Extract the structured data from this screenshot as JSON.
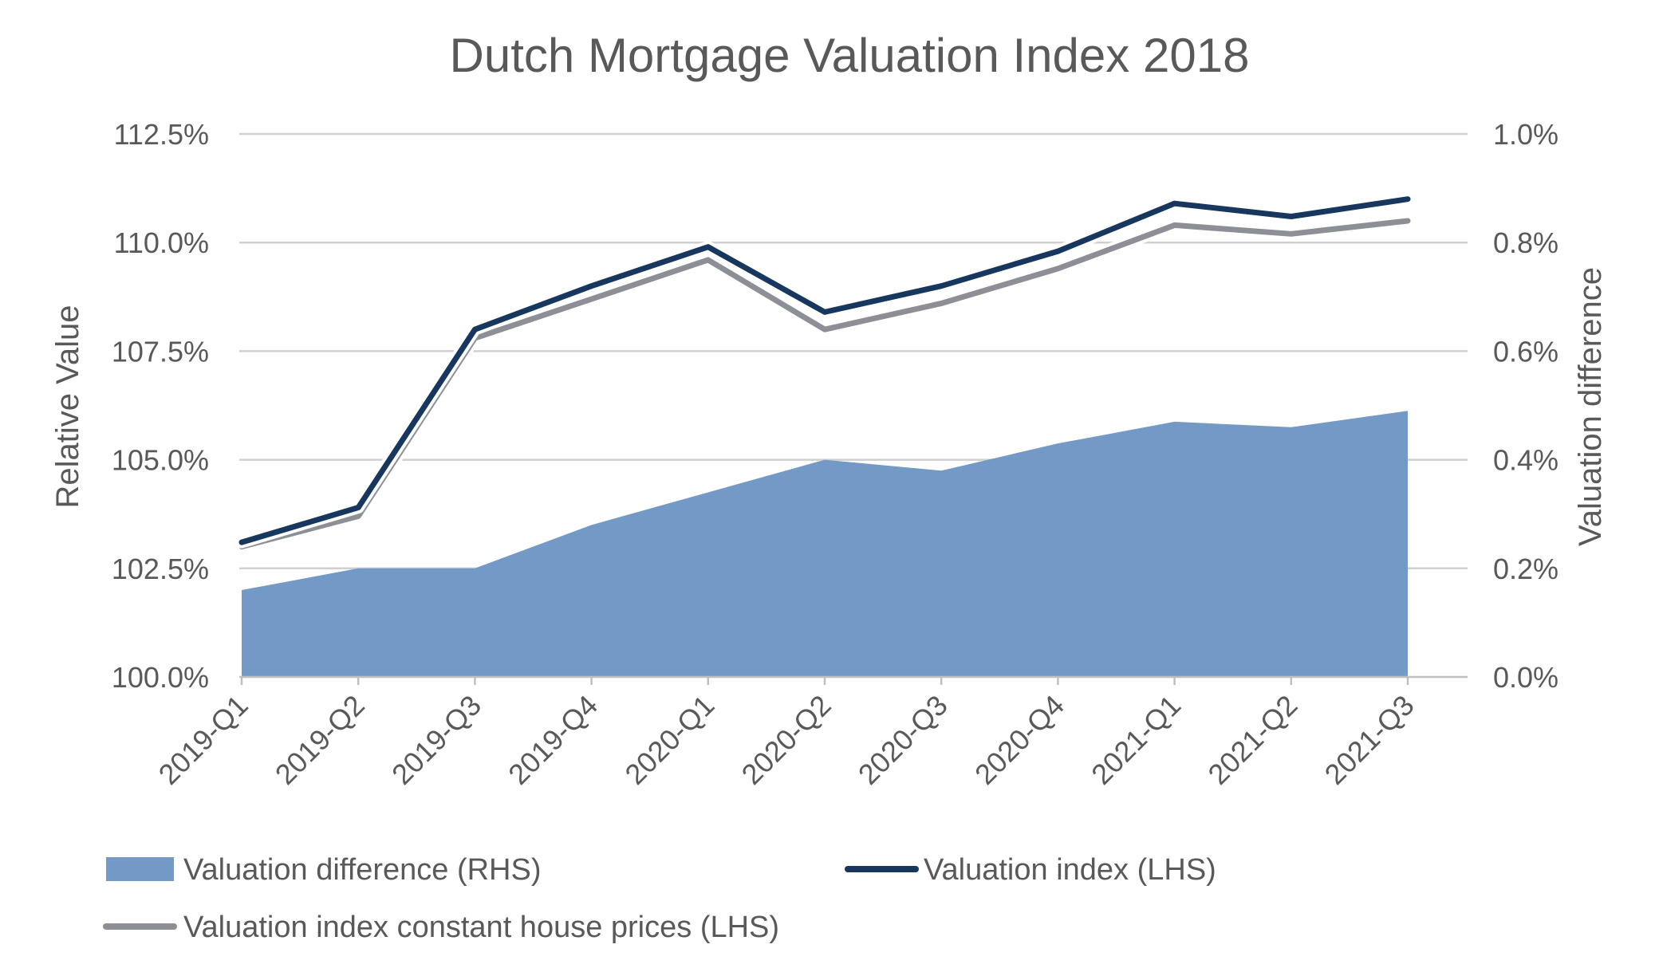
{
  "chart_data": {
    "type": "line",
    "title": "Dutch Mortgage Valuation Index 2018",
    "categories": [
      "2019-Q1",
      "2019-Q2",
      "2019-Q3",
      "2019-Q4",
      "2020-Q1",
      "2020-Q2",
      "2020-Q3",
      "2020-Q4",
      "2021-Q1",
      "2021-Q2",
      "2021-Q3"
    ],
    "y_left": {
      "label": "Relative Value",
      "range": [
        100.0,
        112.5
      ],
      "ticks": [
        "100.0%",
        "102.5%",
        "105.0%",
        "107.5%",
        "110.0%",
        "112.5%"
      ],
      "tick_values": [
        100.0,
        102.5,
        105.0,
        107.5,
        110.0,
        112.5
      ]
    },
    "y_right": {
      "label": "Valuation difference",
      "range": [
        0.0,
        1.0
      ],
      "ticks": [
        "0.0%",
        "0.2%",
        "0.4%",
        "0.6%",
        "0.8%",
        "1.0%"
      ],
      "tick_values": [
        0.0,
        0.2,
        0.4,
        0.6,
        0.8,
        1.0
      ]
    },
    "grid": true,
    "legend_position": "bottom",
    "series": [
      {
        "name": "Valuation difference (RHS)",
        "type": "area",
        "axis": "right",
        "color": "#7399C6",
        "values": [
          0.16,
          0.2,
          0.2,
          0.28,
          0.34,
          0.4,
          0.38,
          0.43,
          0.47,
          0.46,
          0.49
        ]
      },
      {
        "name": "Valuation index (LHS)",
        "type": "line",
        "axis": "left",
        "color": "#17375E",
        "values": [
          103.1,
          103.9,
          108.0,
          109.0,
          109.9,
          108.4,
          109.0,
          109.8,
          110.9,
          110.6,
          111.0
        ]
      },
      {
        "name": "Valuation index constant house prices (LHS)",
        "type": "line",
        "axis": "left",
        "color": "#8C8F96",
        "values": [
          103.0,
          103.7,
          107.8,
          108.7,
          109.6,
          108.0,
          108.6,
          109.4,
          110.4,
          110.2,
          110.5
        ]
      }
    ]
  }
}
